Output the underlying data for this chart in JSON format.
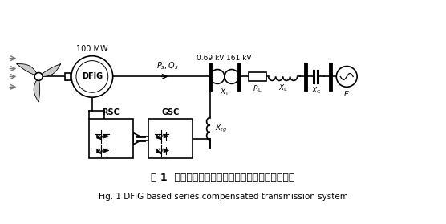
{
  "title_chinese": "图 1  双馈风电机组经串联电容补偿并网系统结构图",
  "title_english": "Fig. 1 DFIG based series compensated transmission system",
  "bg_color": "#ffffff",
  "line_color": "#000000",
  "gray_color": "#777777",
  "label_100mw": "100 MW",
  "label_dfig": "DFIG",
  "label_ps_qs": "$P_s, Q_s$",
  "label_069kv": "0.69 kV",
  "label_161kv": "161 kV",
  "label_xt": "$X_{\\mathrm{T}}$",
  "label_rl": "$R_{\\mathrm{L}}$",
  "label_xl": "$X_{\\mathrm{L}}$",
  "label_xc": "$X_{\\mathrm{C}}$",
  "label_e": "$E$",
  "label_xtg": "$X_{tg}$",
  "label_rsc": "RSC",
  "label_gsc": "GSC",
  "fig_width": 5.56,
  "fig_height": 2.79,
  "dpi": 100
}
